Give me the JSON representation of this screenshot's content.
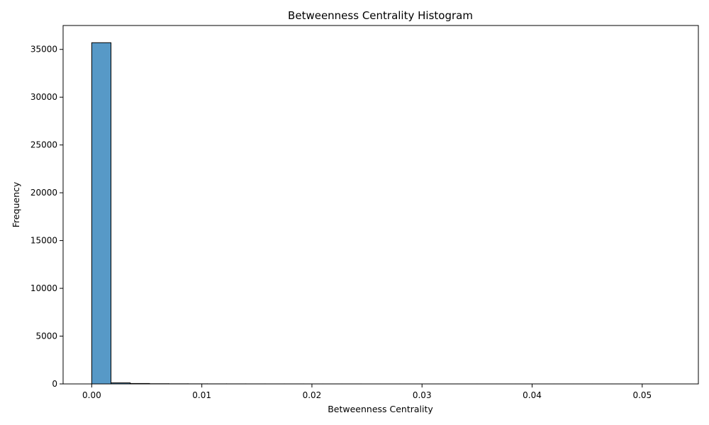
{
  "chart_data": {
    "type": "bar",
    "title": "Betweenness Centrality Histogram",
    "xlabel": "Betweenness Centrality",
    "ylabel": "Frequency",
    "xlim": [
      -0.0026,
      0.0551
    ],
    "ylim": [
      0,
      37500
    ],
    "xticks": [
      0.0,
      0.01,
      0.02,
      0.03,
      0.04,
      0.05
    ],
    "xtick_labels": [
      "0.00",
      "0.01",
      "0.02",
      "0.03",
      "0.04",
      "0.05"
    ],
    "yticks": [
      0,
      5000,
      10000,
      15000,
      20000,
      25000,
      30000,
      35000
    ],
    "ytick_labels": [
      "0",
      "5000",
      "10000",
      "15000",
      "20000",
      "25000",
      "30000",
      "35000"
    ],
    "bin_start": 0.0,
    "bin_width": 0.00175,
    "values": [
      35700,
      110,
      45,
      20,
      12,
      8,
      6,
      5,
      4,
      3,
      3,
      2,
      2,
      2,
      1,
      1,
      1,
      1,
      1,
      1,
      1,
      1,
      1,
      1,
      1,
      1,
      1,
      1,
      1,
      1
    ],
    "bar_color": "#5799c7",
    "edge_color": "#000000",
    "grid": false
  }
}
